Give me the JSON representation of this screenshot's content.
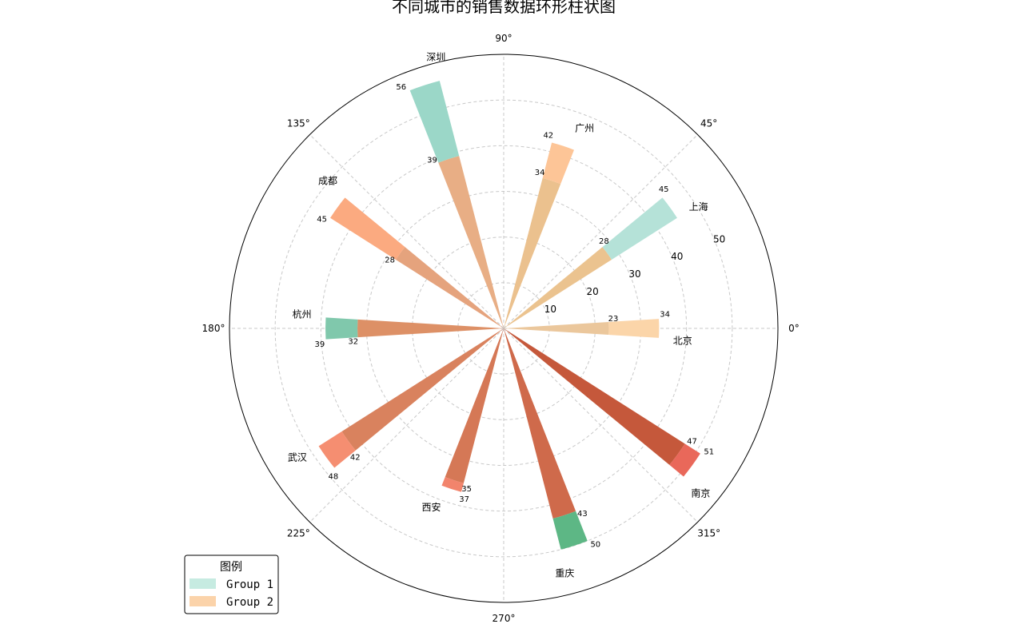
{
  "chart_data": {
    "type": "bar",
    "subtype": "polar-stacked-bar",
    "title": "不同城市的销售数据环形柱状图",
    "categories": [
      "北京",
      "上海",
      "广州",
      "深圳",
      "成都",
      "杭州",
      "武汉",
      "西安",
      "重庆",
      "南京"
    ],
    "angles_deg": [
      0,
      36,
      72,
      108,
      144,
      180,
      216,
      252,
      288,
      324
    ],
    "series": [
      {
        "name": "Group 2",
        "values": [
          23,
          28,
          34,
          39,
          28,
          32,
          42,
          35,
          43,
          47
        ]
      },
      {
        "name": "Group 1",
        "values": [
          34,
          45,
          42,
          56,
          45,
          39,
          48,
          37,
          50,
          51
        ]
      }
    ],
    "outer_colors": [
      "#fbd5a9",
      "#b5e2d8",
      "#fdc597",
      "#9bd7c8",
      "#fbaa80",
      "#80c8ac",
      "#f58e71",
      "#f2846c",
      "#5db785",
      "#e9685a"
    ],
    "inner_colors": [
      "#ebc79c",
      "#ebc38f",
      "#ebc18e",
      "#e8ae85",
      "#e5a37d",
      "#dd9066",
      "#d9825e",
      "#d57856",
      "#cf6a4b",
      "#c5583b"
    ],
    "r_ticks": [
      10,
      20,
      30,
      40,
      50
    ],
    "r_max": 60,
    "theta_ticks": [
      "0°",
      "45°",
      "90°",
      "135°",
      "180°",
      "225°",
      "270°",
      "315°"
    ],
    "grid": true,
    "legend": {
      "title": "图例",
      "position": "lower-left",
      "entries": [
        "Group 1",
        "Group 2"
      ],
      "colors": [
        "#c6ebe1",
        "#fbd3aa"
      ]
    }
  }
}
